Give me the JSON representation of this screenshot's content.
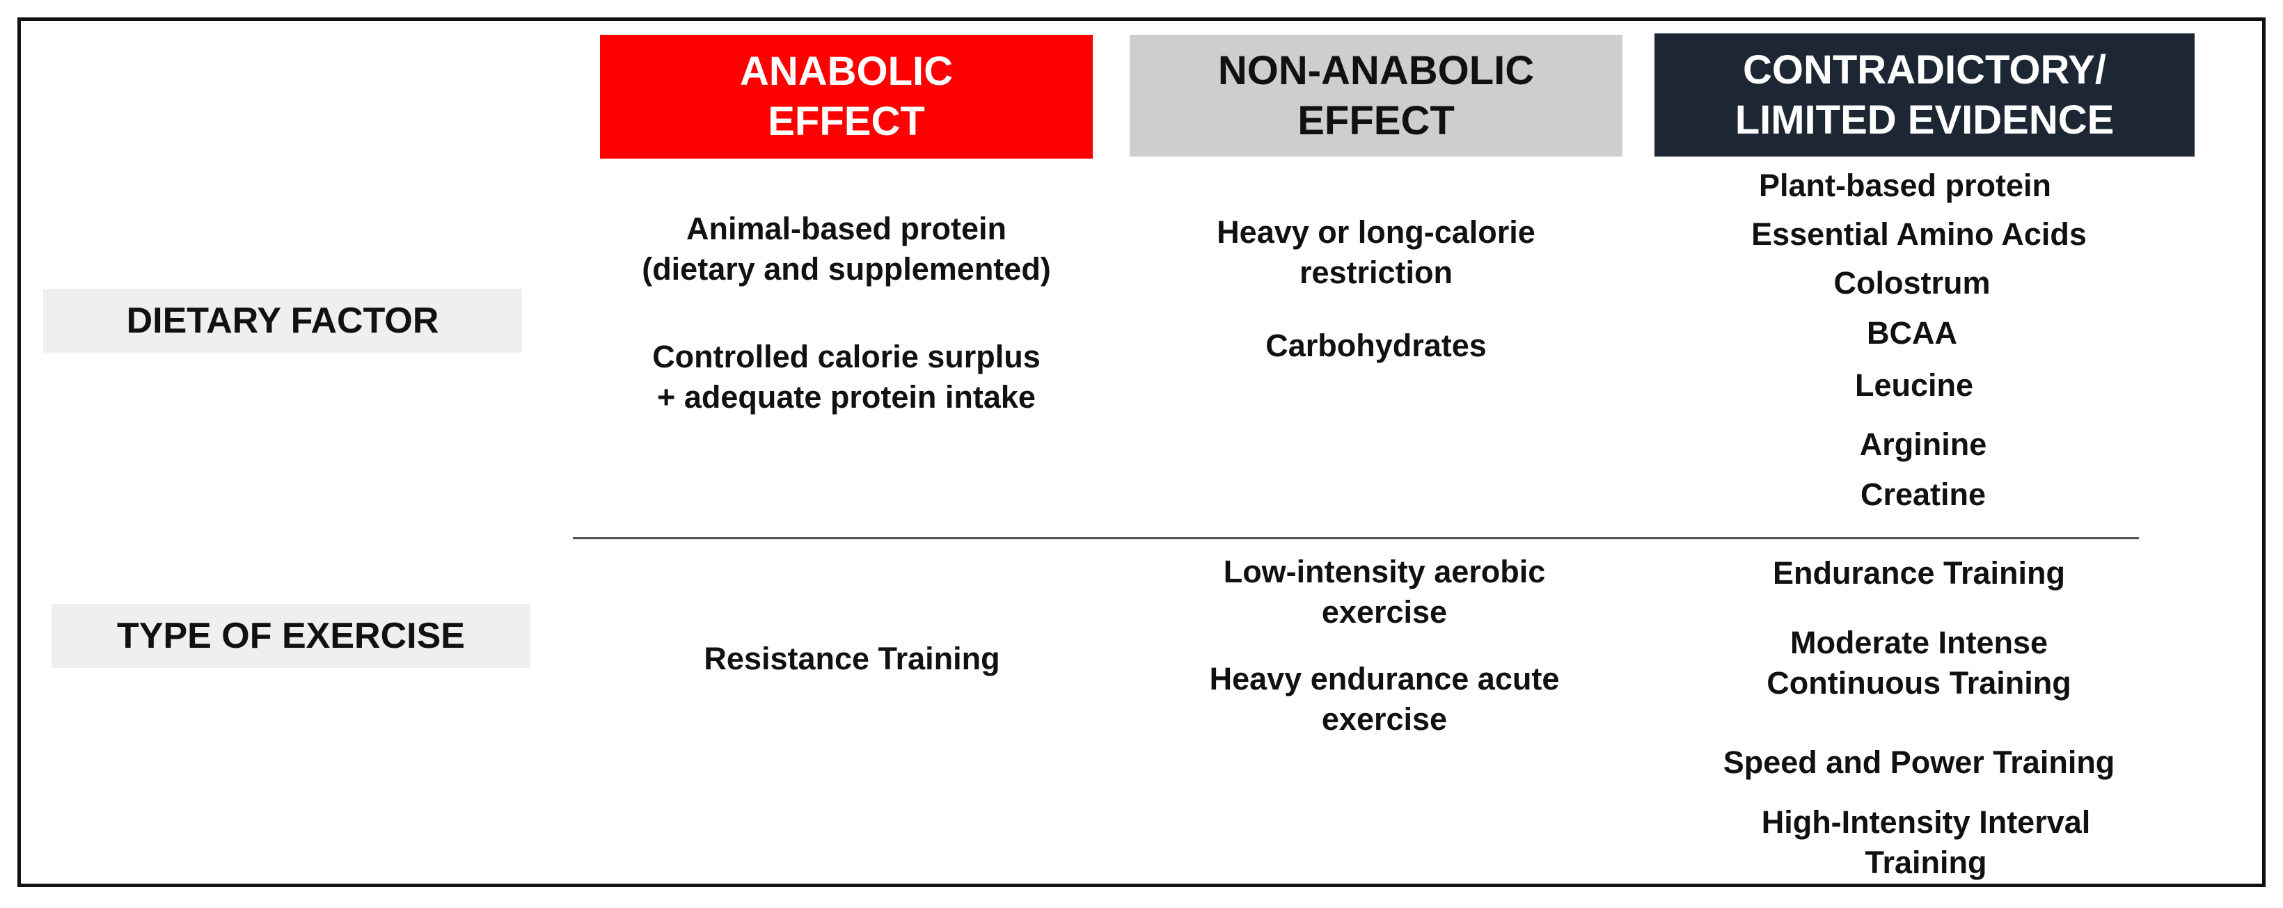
{
  "headers": {
    "anabolic": "ANABOLIC\nEFFECT",
    "non_anabolic": "NON-ANABOLIC\nEFFECT",
    "contradictory": "CONTRADICTORY/\nLIMITED EVIDENCE"
  },
  "colors": {
    "anabolic_header_bg": "#ff0000",
    "non_anabolic_header_bg": "#d0cecc",
    "contradictory_header_bg": "#1c2733",
    "row_label_bg": "#efefef"
  },
  "rows": {
    "dietary": {
      "label": "DIETARY FACTOR",
      "anabolic": [
        "Animal-based protein\n(dietary and supplemented)",
        "Controlled calorie surplus\n+ adequate protein intake"
      ],
      "non_anabolic": [
        "Heavy or long-calorie\nrestriction",
        "Carbohydrates"
      ],
      "contradictory": [
        "Plant-based protein",
        "Essential Amino Acids",
        "Colostrum",
        "BCAA",
        "Leucine",
        "Arginine",
        "Creatine"
      ]
    },
    "exercise": {
      "label": "TYPE OF EXERCISE",
      "anabolic": [
        "Resistance Training"
      ],
      "non_anabolic": [
        "Low-intensity aerobic\nexercise",
        "Heavy endurance acute\nexercise"
      ],
      "contradictory": [
        "Endurance Training",
        "Moderate Intense\nContinuous Training",
        "Speed and Power Training",
        "High-Intensity Interval\nTraining"
      ]
    }
  }
}
